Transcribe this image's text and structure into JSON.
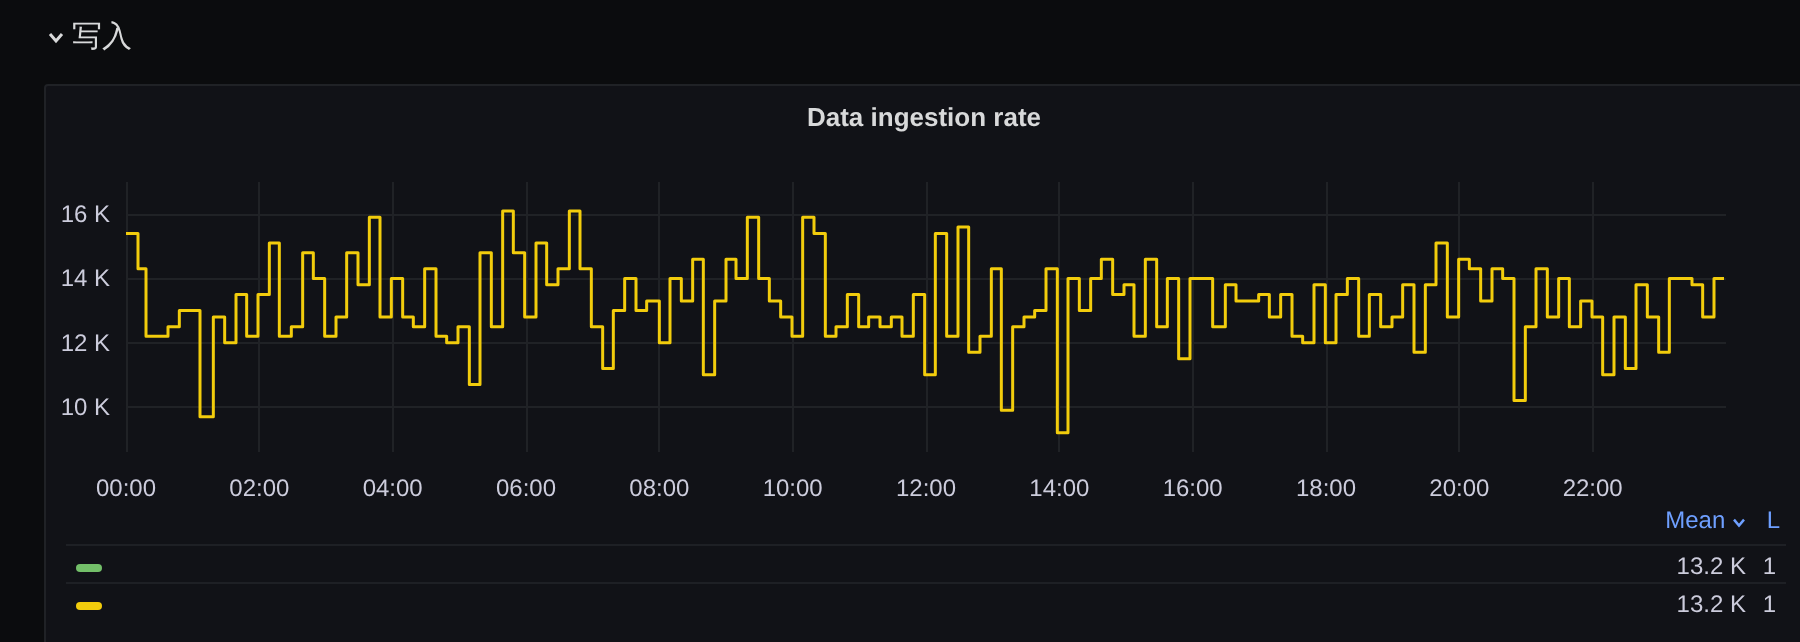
{
  "chart_data": {
    "type": "step",
    "title": "Data ingestion rate",
    "annotations": [
      "写入",
      "Mean",
      "L",
      "13.2 K",
      "1",
      "13.2 K",
      "1"
    ],
    "x": [
      0,
      0.18,
      0.3,
      0.63,
      0.8,
      1.11,
      1.31,
      1.48,
      1.65,
      1.81,
      1.98,
      2.15,
      2.3,
      2.48,
      2.65,
      2.81,
      2.98,
      3.15,
      3.31,
      3.48,
      3.65,
      3.81,
      3.98,
      4.15,
      4.31,
      4.48,
      4.65,
      4.81,
      4.98,
      5.15,
      5.31,
      5.48,
      5.65,
      5.81,
      5.98,
      6.15,
      6.31,
      6.48,
      6.65,
      6.81,
      6.98,
      7.15,
      7.31,
      7.48,
      7.65,
      7.81,
      8.0,
      8.16,
      8.33,
      8.5,
      8.66,
      8.83,
      9.0,
      9.15,
      9.32,
      9.49,
      9.65,
      9.82,
      9.99,
      10.15,
      10.32,
      10.49,
      10.65,
      10.82,
      10.99,
      11.14,
      11.31,
      11.48,
      11.64,
      11.81,
      11.98,
      12.14,
      12.31,
      12.48,
      12.64,
      12.81,
      12.98,
      13.13,
      13.3,
      13.47,
      13.63,
      13.8,
      13.97,
      14.13,
      14.3,
      14.47,
      14.63,
      14.8,
      14.97,
      15.12,
      15.29,
      15.46,
      15.62,
      15.79,
      15.96,
      16.3,
      16.49,
      16.65,
      16.99,
      17.15,
      17.32,
      17.49,
      17.65,
      17.82,
      17.99,
      18.15,
      18.32,
      18.49,
      18.65,
      18.82,
      18.99,
      19.15,
      19.32,
      19.49,
      19.65,
      19.82,
      19.99,
      20.15,
      20.32,
      20.49,
      20.65,
      20.82,
      20.99,
      21.15,
      21.32,
      21.49,
      21.65,
      21.82,
      21.99,
      22.15,
      22.32,
      22.49,
      22.65,
      22.82,
      22.99,
      23.15,
      23.49,
      23.65,
      23.82,
      23.97
    ],
    "series": [
      {
        "color": "#73bf69",
        "values": [
          null,
          null,
          null,
          null,
          null,
          null,
          null,
          null,
          null,
          null,
          null,
          null,
          null,
          null,
          null,
          null,
          null,
          null,
          null,
          null,
          null,
          null,
          null,
          null,
          null,
          null,
          null,
          null,
          null,
          null,
          null,
          null,
          null,
          null,
          null,
          null,
          null,
          null,
          null,
          null,
          null,
          null,
          null,
          null,
          null,
          null,
          null,
          null,
          null,
          null,
          null,
          null,
          null,
          null,
          null,
          null,
          null,
          null,
          null,
          null,
          null,
          null,
          null,
          null,
          null,
          null,
          null,
          null,
          null,
          null,
          null,
          null,
          null,
          null,
          null,
          null,
          null,
          null,
          null,
          null,
          null,
          null,
          null,
          null,
          null,
          null,
          null,
          null,
          null,
          null,
          null,
          null,
          null,
          null,
          null,
          null,
          null,
          null,
          null,
          null,
          null,
          null,
          null,
          null,
          null,
          null,
          null,
          null,
          null,
          null,
          null,
          null,
          null,
          null,
          null,
          null,
          null,
          null,
          null,
          null,
          null,
          null,
          null,
          null,
          null,
          null,
          null,
          null,
          null,
          null,
          null,
          null,
          null,
          null,
          null,
          null,
          null,
          null,
          null,
          null
        ]
      },
      {
        "color": "#f2cc0c",
        "values": [
          15400,
          14300,
          12200,
          12500,
          13000,
          9700,
          12800,
          12000,
          13500,
          12200,
          13500,
          15100,
          12200,
          12500,
          14800,
          14000,
          12200,
          12800,
          14800,
          13800,
          15900,
          12800,
          14000,
          12800,
          12500,
          14300,
          12200,
          12000,
          12500,
          10700,
          14800,
          12500,
          16100,
          14800,
          12800,
          15100,
          13800,
          14300,
          16100,
          14300,
          12500,
          11200,
          13000,
          14000,
          13000,
          13300,
          12000,
          14000,
          13300,
          14600,
          11000,
          13300,
          14600,
          14000,
          15900,
          14000,
          13300,
          12800,
          12200,
          15900,
          15400,
          12200,
          12500,
          13500,
          12500,
          12800,
          12500,
          12800,
          12200,
          13500,
          11000,
          15400,
          12200,
          15600,
          11700,
          12200,
          14300,
          9900,
          12500,
          12800,
          13000,
          14300,
          9200,
          14000,
          13000,
          14000,
          14600,
          13500,
          13800,
          12200,
          14600,
          12500,
          14000,
          11500,
          14000,
          12500,
          13800,
          13300,
          13500,
          12800,
          13500,
          12200,
          12000,
          13800,
          12000,
          13500,
          14000,
          12200,
          13500,
          12500,
          12800,
          13800,
          11700,
          13800,
          15100,
          12800,
          14600,
          14300,
          13300,
          14300,
          14000,
          10200,
          12500,
          14300,
          12800,
          14000,
          12500,
          13300,
          12800,
          11000,
          12800,
          11200,
          13800,
          12800,
          11700,
          14000,
          13800,
          12800,
          14000,
          14000
        ]
      }
    ],
    "xlim": [
      0,
      24
    ],
    "xticks": [
      {
        "value": 0,
        "label": "00:00"
      },
      {
        "value": 2,
        "label": "02:00"
      },
      {
        "value": 4,
        "label": "04:00"
      },
      {
        "value": 6,
        "label": "06:00"
      },
      {
        "value": 8,
        "label": "08:00"
      },
      {
        "value": 10,
        "label": "10:00"
      },
      {
        "value": 12,
        "label": "12:00"
      },
      {
        "value": 14,
        "label": "14:00"
      },
      {
        "value": 16,
        "label": "16:00"
      },
      {
        "value": 18,
        "label": "18:00"
      },
      {
        "value": 20,
        "label": "20:00"
      },
      {
        "value": 22,
        "label": "22:00"
      }
    ],
    "ylim": [
      8600,
      17000
    ],
    "yticks": [
      {
        "value": 10000,
        "label": "10 K"
      },
      {
        "value": 12000,
        "label": "12 K"
      },
      {
        "value": 14000,
        "label": "14 K"
      },
      {
        "value": 16000,
        "label": "16 K"
      }
    ],
    "grid": true,
    "marker": "none",
    "line_style": "solid"
  }
}
